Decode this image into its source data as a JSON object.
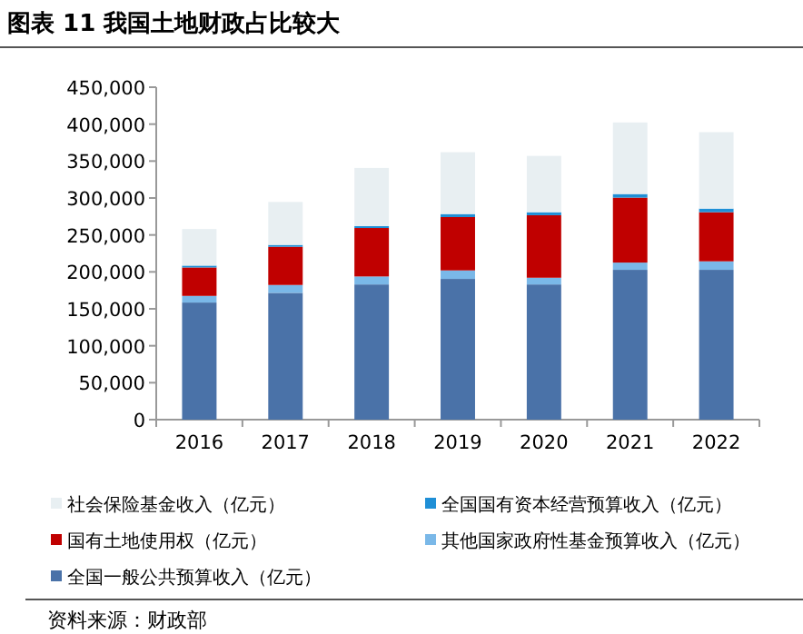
{
  "chart_data": {
    "type": "bar",
    "stacked": true,
    "title": "图表 11  我国土地财政占比较大",
    "annotations": [
      "资料来源：财政部"
    ],
    "categories": [
      "2016",
      "2017",
      "2018",
      "2019",
      "2020",
      "2021",
      "2022"
    ],
    "series": [
      {
        "name": "全国一般公共预算收入（亿元）",
        "color": "#4a72a8",
        "values": [
          158500,
          171600,
          183000,
          190500,
          183000,
          202800,
          202800
        ]
      },
      {
        "name": "其他国家政府性基金预算收入（亿元）",
        "color": "#7ab8e8",
        "values": [
          9000,
          10700,
          10800,
          11500,
          9100,
          9800,
          11500
        ]
      },
      {
        "name": "国有土地使用权（亿元）",
        "color": "#c00000",
        "values": [
          38500,
          51700,
          65600,
          72200,
          84600,
          87900,
          66500
        ]
      },
      {
        "name": "全国国有资本经营预算收入（亿元）",
        "color": "#1f8fd6",
        "values": [
          2500,
          2500,
          2600,
          4100,
          4100,
          4900,
          4900
        ]
      },
      {
        "name": "社会保险基金收入（亿元）",
        "color": "#e8eff2",
        "values": [
          49500,
          58200,
          78700,
          83700,
          76200,
          96900,
          103400
        ]
      }
    ],
    "ylim": [
      0,
      450000
    ],
    "yticks": [
      {
        "value": 0,
        "label": "0"
      },
      {
        "value": 50000,
        "label": "50,000"
      },
      {
        "value": 100000,
        "label": "100,000"
      },
      {
        "value": 150000,
        "label": "150,000"
      },
      {
        "value": 200000,
        "label": "200,000"
      },
      {
        "value": 250000,
        "label": "250,000"
      },
      {
        "value": 300000,
        "label": "300,000"
      },
      {
        "value": 350000,
        "label": "350,000"
      },
      {
        "value": 400000,
        "label": "400,000"
      },
      {
        "value": 450000,
        "label": "450,000"
      }
    ],
    "grid": false,
    "legend": "bottom"
  }
}
